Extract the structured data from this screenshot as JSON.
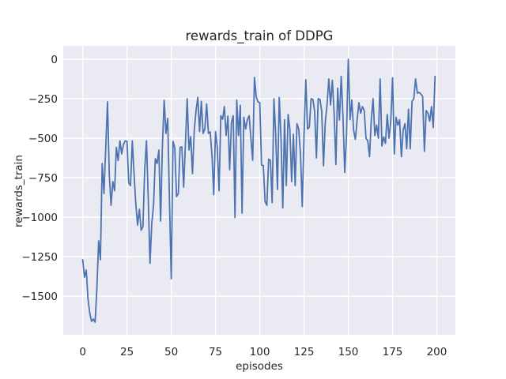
{
  "chart_data": {
    "type": "line",
    "title": "rewards_train of DDPG",
    "xlabel": "episodes",
    "ylabel": "rewards_train",
    "legend": null,
    "grid": true,
    "fig_bg_color": "#ffffff",
    "axes_bg_color": "#eaeaf2",
    "grid_color": "#ffffff",
    "text_color": "#262626",
    "line_color": "#4c72b0",
    "xlim": [
      -11,
      210.5
    ],
    "ylim": [
      -1745,
      85
    ],
    "x_ticks": [
      0,
      25,
      50,
      75,
      100,
      125,
      150,
      175,
      200
    ],
    "x_tick_labels": [
      "0",
      "25",
      "50",
      "75",
      "100",
      "125",
      "150",
      "175",
      "200"
    ],
    "y_ticks": [
      0,
      -250,
      -500,
      -750,
      -1000,
      -1250,
      -1500
    ],
    "y_tick_labels": [
      "0",
      "−250",
      "−500",
      "−750",
      "−1000",
      "−1250",
      "−1500"
    ],
    "x_start": 0,
    "x_step": 1,
    "series": [
      {
        "name": "rewards_train",
        "values": [
          -1270,
          -1380,
          -1335,
          -1520,
          -1610,
          -1660,
          -1645,
          -1665,
          -1450,
          -1150,
          -1270,
          -660,
          -850,
          -560,
          -270,
          -730,
          -925,
          -775,
          -833,
          -558,
          -642,
          -517,
          -600,
          -540,
          -517,
          -520,
          -783,
          -800,
          -517,
          -725,
          -920,
          -1050,
          -950,
          -1083,
          -1060,
          -700,
          -517,
          -880,
          -1292,
          -1040,
          -925,
          -630,
          -660,
          -575,
          -1025,
          -550,
          -260,
          -470,
          -375,
          -900,
          -1390,
          -520,
          -560,
          -870,
          -850,
          -558,
          -555,
          -810,
          -540,
          -250,
          -575,
          -490,
          -725,
          -450,
          -325,
          -242,
          -458,
          -267,
          -470,
          -440,
          -283,
          -470,
          -460,
          -608,
          -858,
          -458,
          -558,
          -833,
          -358,
          -380,
          -300,
          -483,
          -360,
          -700,
          -400,
          -358,
          -1003,
          -258,
          -483,
          -292,
          -975,
          -367,
          -442,
          -383,
          -358,
          -500,
          -640,
          -115,
          -240,
          -270,
          -275,
          -670,
          -673,
          -900,
          -925,
          -633,
          -640,
          -908,
          -250,
          -475,
          -825,
          -242,
          -500,
          -942,
          -383,
          -800,
          -350,
          -442,
          -775,
          -475,
          -800,
          -408,
          -442,
          -600,
          -933,
          -480,
          -130,
          -442,
          -430,
          -250,
          -255,
          -330,
          -625,
          -250,
          -255,
          -330,
          -675,
          -400,
          -290,
          -125,
          -290,
          -133,
          -340,
          -667,
          -183,
          -385,
          -108,
          -365,
          -717,
          -480,
          0,
          -383,
          -258,
          -450,
          -508,
          -383,
          -275,
          -342,
          -300,
          -325,
          -500,
          -517,
          -617,
          -383,
          -250,
          -483,
          -417,
          -500,
          -125,
          -550,
          -492,
          -533,
          -350,
          -500,
          -392,
          -117,
          -600,
          -367,
          -417,
          -383,
          -617,
          -450,
          -408,
          -567,
          -317,
          -567,
          -267,
          -250,
          -125,
          -215,
          -210,
          -220,
          -235,
          -583,
          -325,
          -342,
          -392,
          -300,
          -433,
          -108
        ]
      }
    ]
  }
}
